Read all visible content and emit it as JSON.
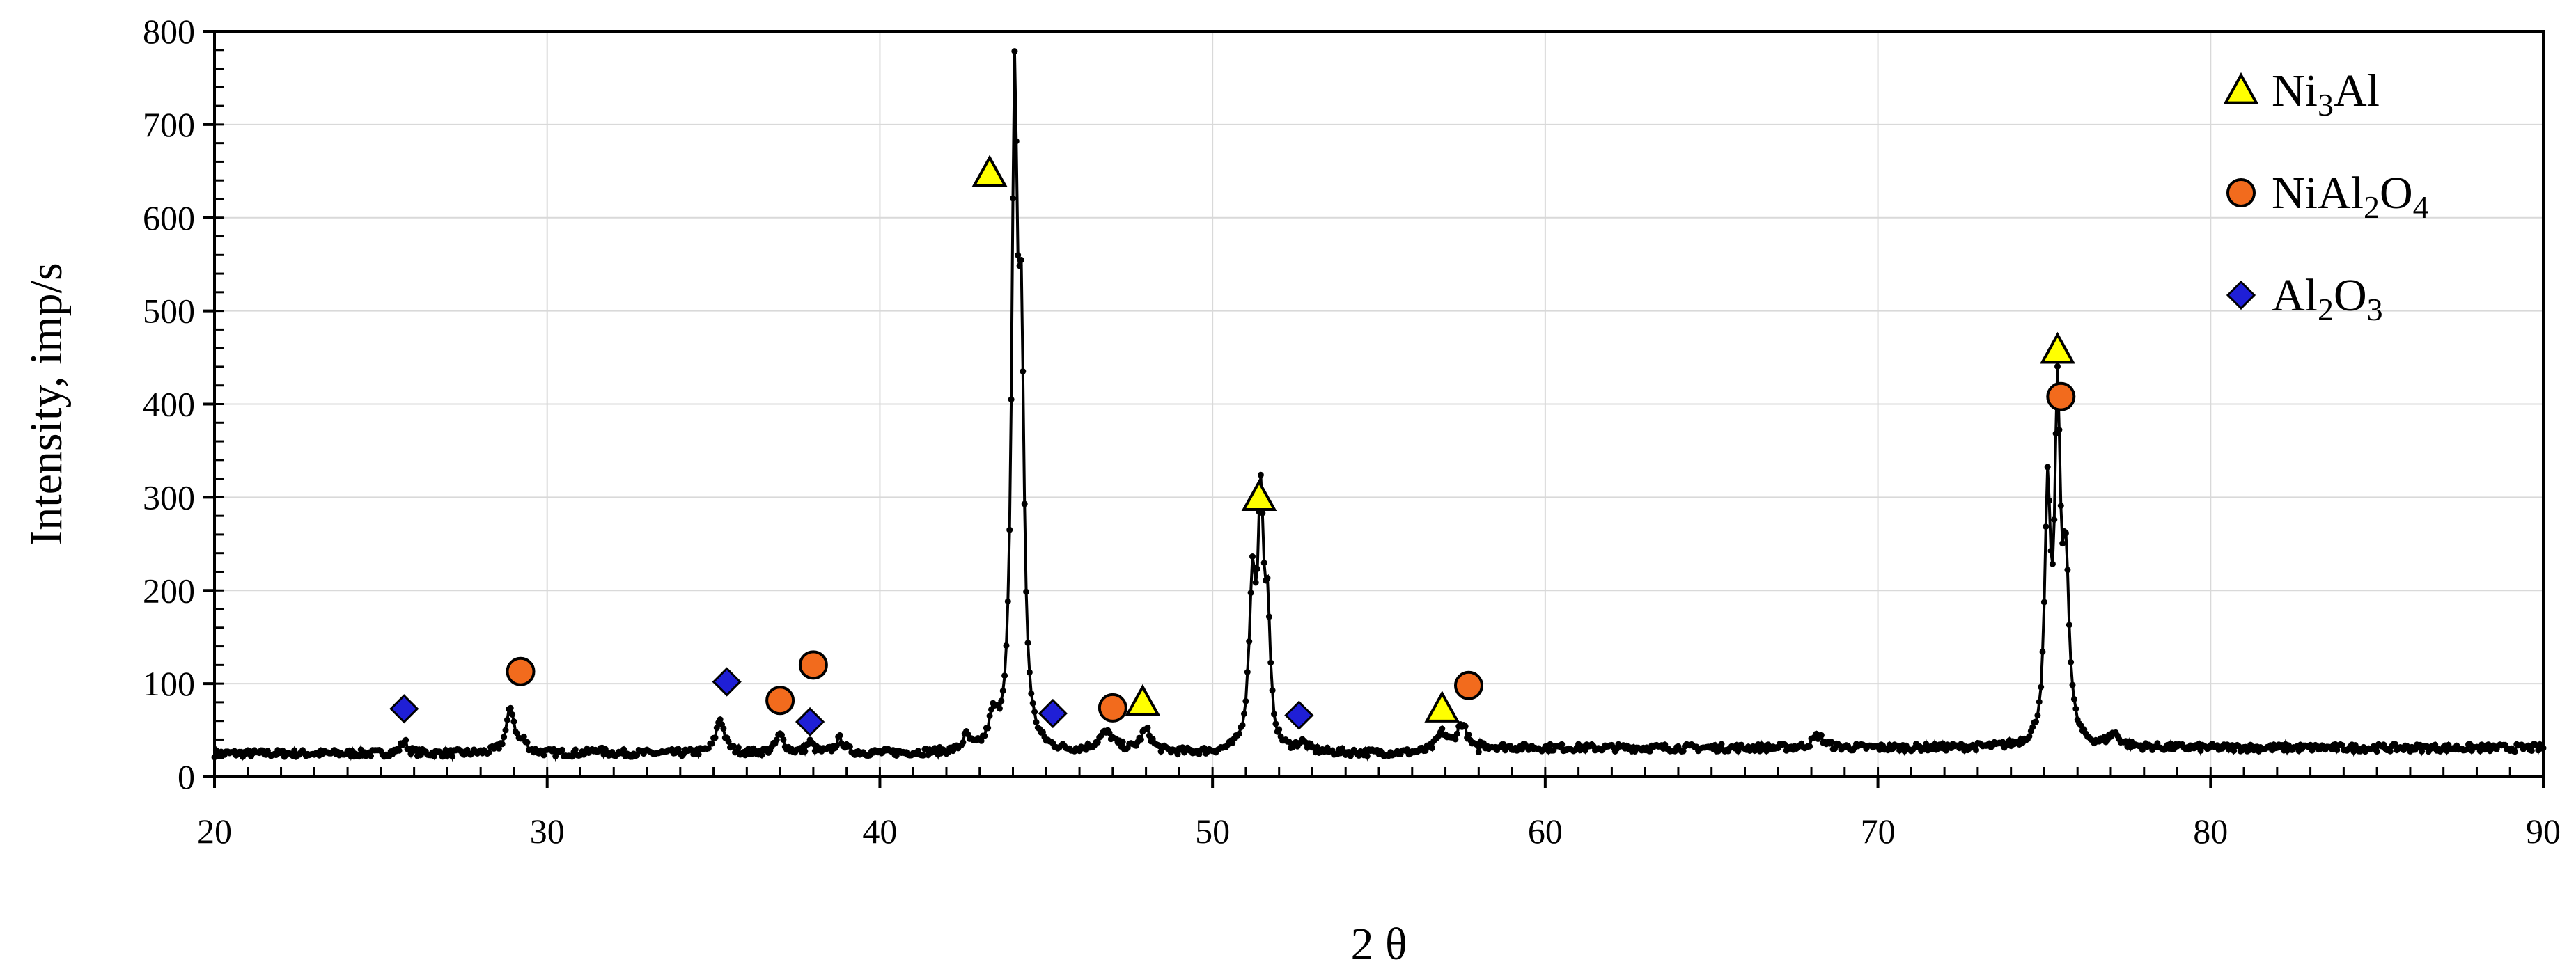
{
  "chart_data": {
    "type": "line",
    "title": "",
    "xlabel": "2 θ",
    "ylabel": "Intensity, imp/s",
    "xlim": [
      20,
      90
    ],
    "ylim": [
      0,
      800
    ],
    "xticks": [
      20,
      30,
      40,
      50,
      60,
      70,
      80,
      90
    ],
    "yticks": [
      0,
      100,
      200,
      300,
      400,
      500,
      600,
      700,
      800
    ],
    "grid": true,
    "legend_position": "top-right",
    "baseline": 25,
    "peaks": [
      {
        "x": 25.7,
        "y": 38,
        "w": 0.12
      },
      {
        "x": 28.9,
        "y": 73,
        "w": 0.15
      },
      {
        "x": 29.3,
        "y": 35,
        "w": 0.12
      },
      {
        "x": 31.5,
        "y": 30,
        "w": 0.12
      },
      {
        "x": 35.2,
        "y": 62,
        "w": 0.15
      },
      {
        "x": 37.0,
        "y": 44,
        "w": 0.15
      },
      {
        "x": 37.9,
        "y": 36,
        "w": 0.12
      },
      {
        "x": 38.8,
        "y": 40,
        "w": 0.15
      },
      {
        "x": 42.6,
        "y": 40,
        "w": 0.12
      },
      {
        "x": 43.4,
        "y": 55,
        "w": 0.15
      },
      {
        "x": 44.05,
        "y": 695,
        "w": 0.1
      },
      {
        "x": 44.25,
        "y": 420,
        "w": 0.1
      },
      {
        "x": 46.8,
        "y": 45,
        "w": 0.3
      },
      {
        "x": 48.0,
        "y": 48,
        "w": 0.2
      },
      {
        "x": 51.2,
        "y": 195,
        "w": 0.12
      },
      {
        "x": 51.45,
        "y": 268,
        "w": 0.1
      },
      {
        "x": 51.65,
        "y": 150,
        "w": 0.1
      },
      {
        "x": 52.7,
        "y": 34,
        "w": 0.2
      },
      {
        "x": 56.9,
        "y": 45,
        "w": 0.2
      },
      {
        "x": 57.5,
        "y": 55,
        "w": 0.2
      },
      {
        "x": 68.2,
        "y": 38,
        "w": 0.2
      },
      {
        "x": 75.1,
        "y": 280,
        "w": 0.1
      },
      {
        "x": 75.4,
        "y": 372,
        "w": 0.1
      },
      {
        "x": 75.65,
        "y": 200,
        "w": 0.12
      },
      {
        "x": 77.1,
        "y": 38,
        "w": 0.2
      }
    ],
    "markers": [
      {
        "phase": "Ni3Al",
        "x": 43.3,
        "y": 648
      },
      {
        "phase": "Ni3Al",
        "x": 47.9,
        "y": 80
      },
      {
        "phase": "Ni3Al",
        "x": 51.4,
        "y": 300
      },
      {
        "phase": "Ni3Al",
        "x": 56.9,
        "y": 73
      },
      {
        "phase": "Ni3Al",
        "x": 75.4,
        "y": 458
      },
      {
        "phase": "NiAl2O4",
        "x": 29.2,
        "y": 113
      },
      {
        "phase": "NiAl2O4",
        "x": 37.0,
        "y": 82
      },
      {
        "phase": "NiAl2O4",
        "x": 38.0,
        "y": 120
      },
      {
        "phase": "NiAl2O4",
        "x": 47.0,
        "y": 74
      },
      {
        "phase": "NiAl2O4",
        "x": 57.7,
        "y": 98
      },
      {
        "phase": "NiAl2O4",
        "x": 75.5,
        "y": 408
      },
      {
        "phase": "Al2O3",
        "x": 25.7,
        "y": 73
      },
      {
        "phase": "Al2O3",
        "x": 35.4,
        "y": 102
      },
      {
        "phase": "Al2O3",
        "x": 37.9,
        "y": 59
      },
      {
        "phase": "Al2O3",
        "x": 45.2,
        "y": 68
      },
      {
        "phase": "Al2O3",
        "x": 52.6,
        "y": 66
      }
    ],
    "legend": [
      {
        "phase": "Ni3Al",
        "marker": "triangle",
        "color": "#ffff00",
        "parts": [
          {
            "t": "Ni",
            "sub": false
          },
          {
            "t": "3",
            "sub": true
          },
          {
            "t": "Al",
            "sub": false
          }
        ]
      },
      {
        "phase": "NiAl2O4",
        "marker": "circle",
        "color": "#f26b1d",
        "parts": [
          {
            "t": "NiAl",
            "sub": false
          },
          {
            "t": "2",
            "sub": true
          },
          {
            "t": "O",
            "sub": false
          },
          {
            "t": "4",
            "sub": true
          }
        ]
      },
      {
        "phase": "Al2O3",
        "marker": "diamond",
        "color": "#1f1fd6",
        "parts": [
          {
            "t": "Al",
            "sub": false
          },
          {
            "t": "2",
            "sub": true
          },
          {
            "t": "O",
            "sub": false
          },
          {
            "t": "3",
            "sub": true
          }
        ]
      }
    ]
  },
  "colors": {
    "line": "#000000",
    "grid": "#d9d9d9",
    "Ni3Al": "#ffff00",
    "NiAl2O4": "#f26b1d",
    "Al2O3": "#1f1fd6"
  }
}
